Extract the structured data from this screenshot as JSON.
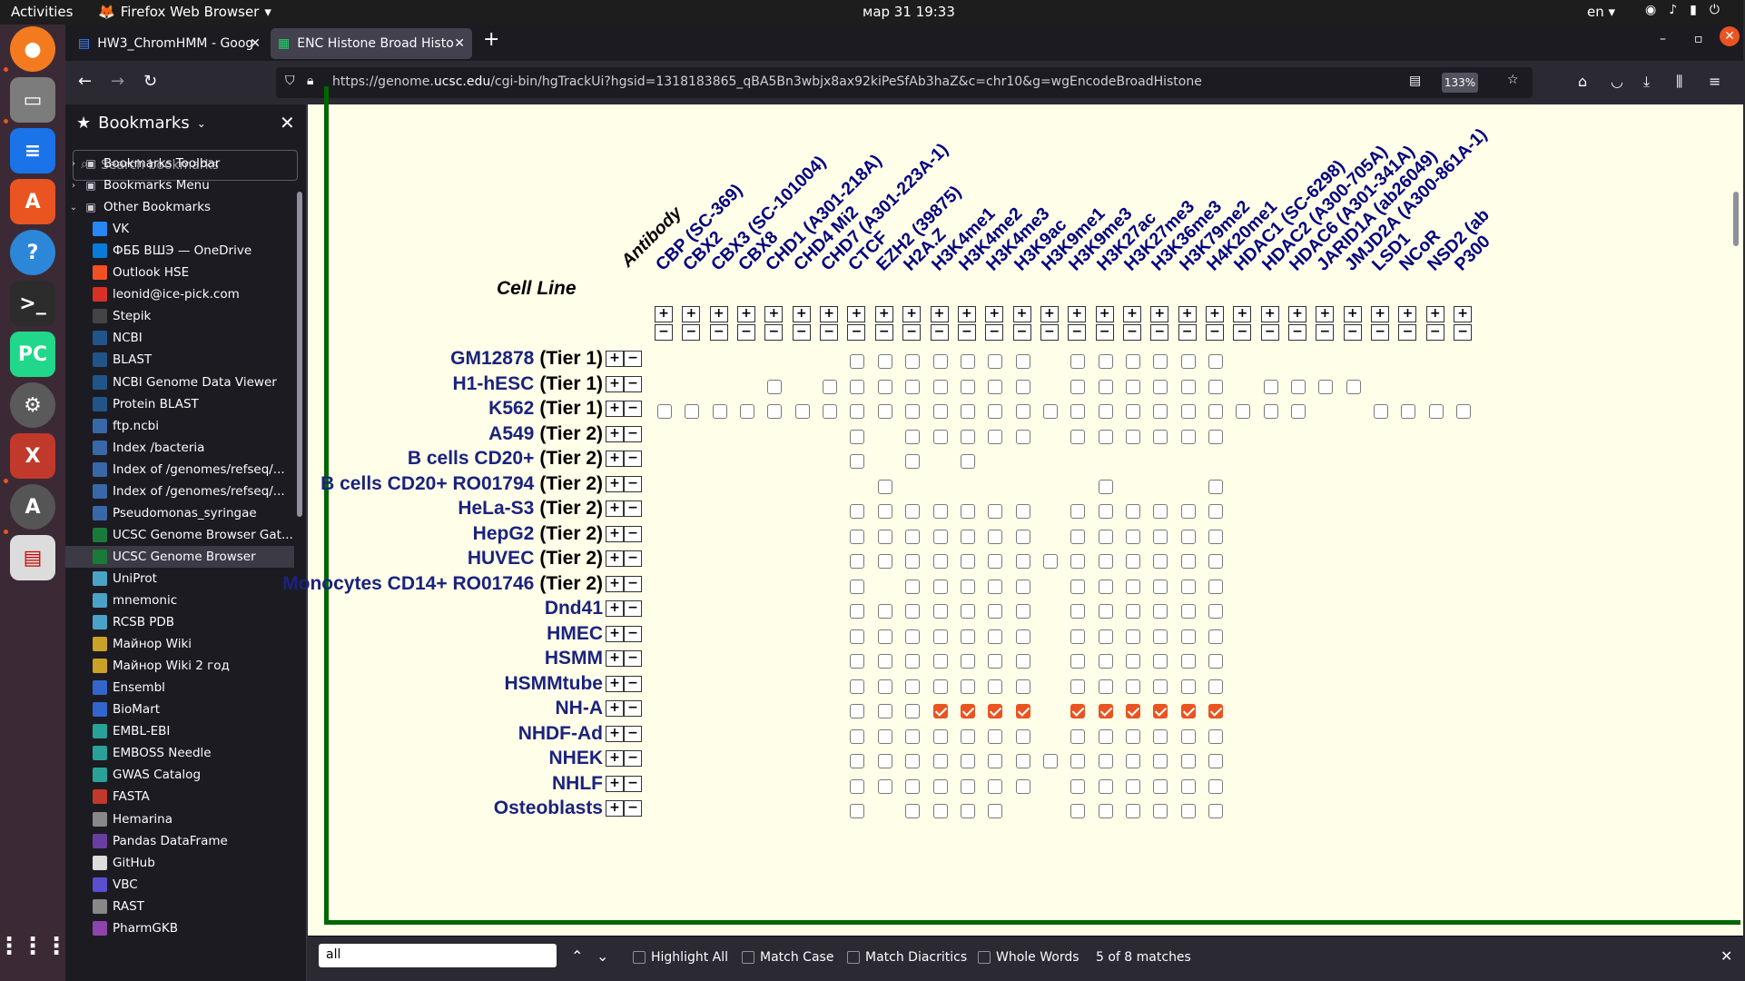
{
  "system": {
    "activities": "Activities",
    "app_name": "Firefox Web Browser",
    "clock": "мар 31  19:33",
    "lang": "en"
  },
  "tabs": [
    {
      "label": "HW3_ChromHMM - Goog",
      "active": false
    },
    {
      "label": "ENC Histone Broad Histo",
      "active": true
    }
  ],
  "url": {
    "prefix": "https://genome.",
    "domain": "ucsc.edu",
    "rest": "/cgi-bin/hgTrackUi?hgsid=1318183865_qBA5Bn3wbjx8ax92kiPeSfAb3haZ&c=chr10&g=wgEncodeBroadHistone",
    "zoom": "133%"
  },
  "sidebar": {
    "title": "Bookmarks",
    "search_placeholder": "Search bookmarks",
    "items": [
      {
        "label": "Bookmarks Toolbar",
        "icon": "toolbar-icon",
        "folder": true
      },
      {
        "label": "Bookmarks Menu",
        "icon": "menu-icon",
        "folder": true
      },
      {
        "label": "Other Bookmarks",
        "icon": "folder-icon",
        "folder": true,
        "open": true
      },
      {
        "label": "VK",
        "icon": "vk-icon",
        "color": "#2787f5"
      },
      {
        "label": "ФББ ВШЭ — OneDrive",
        "icon": "onedrive-icon",
        "color": "#0a7ad8"
      },
      {
        "label": "Outlook HSE",
        "icon": "microsoft-icon",
        "color": "#f25022"
      },
      {
        "label": "leonid@ice-pick.com",
        "icon": "gmail-icon",
        "color": "#d93025"
      },
      {
        "label": "Stepik",
        "icon": "stepik-icon",
        "color": "#444"
      },
      {
        "label": "NCBI",
        "icon": "ncbi-icon",
        "color": "#20558a"
      },
      {
        "label": "BLAST",
        "icon": "blast-icon",
        "color": "#20558a"
      },
      {
        "label": "NCBI Genome Data Viewer",
        "icon": "ncbi-icon",
        "color": "#20558a"
      },
      {
        "label": "Protein BLAST",
        "icon": "blast-icon",
        "color": "#20558a"
      },
      {
        "label": "ftp.ncbi",
        "icon": "page-icon",
        "color": "#3868a8"
      },
      {
        "label": "Index /bacteria",
        "icon": "page-icon",
        "color": "#3868a8"
      },
      {
        "label": "Index of /genomes/refseq/...",
        "icon": "page-icon",
        "color": "#3868a8"
      },
      {
        "label": "Index of /genomes/refseq/...",
        "icon": "page-icon",
        "color": "#3868a8"
      },
      {
        "label": "Pseudomonas_syringae",
        "icon": "page-icon",
        "color": "#3868a8"
      },
      {
        "label": "UCSC Genome Browser Gat...",
        "icon": "ucsc-icon",
        "color": "#1a7a3a"
      },
      {
        "label": "UCSC Genome Browser",
        "icon": "ucsc-icon",
        "color": "#1a7a3a",
        "selected": true
      },
      {
        "label": "UniProt",
        "icon": "uniprot-icon",
        "color": "#4aa3c6"
      },
      {
        "label": "mnemonic",
        "icon": "mnemonic-icon",
        "color": "#4aa3c6"
      },
      {
        "label": "RCSB PDB",
        "icon": "pdb-icon",
        "color": "#4aa3c6"
      },
      {
        "label": "Майнор Wiki",
        "icon": "wiki-icon",
        "color": "#c9a227"
      },
      {
        "label": "Майнор Wiki 2 год",
        "icon": "wiki-icon",
        "color": "#c9a227"
      },
      {
        "label": "Ensembl",
        "icon": "ensembl-icon",
        "color": "#3366cc"
      },
      {
        "label": "BioMart",
        "icon": "biomart-icon",
        "color": "#3366cc"
      },
      {
        "label": "EMBL-EBI",
        "icon": "ebi-icon",
        "color": "#2aa198"
      },
      {
        "label": "EMBOSS Needle",
        "icon": "ebi-icon",
        "color": "#2aa198"
      },
      {
        "label": "GWAS Catalog",
        "icon": "ebi-icon",
        "color": "#2aa198"
      },
      {
        "label": "FASTA",
        "icon": "fasta-icon",
        "color": "#c0392b"
      },
      {
        "label": "Hemarina",
        "icon": "globe-icon",
        "color": "#888"
      },
      {
        "label": "Pandas DataFrame",
        "icon": "pandas-icon",
        "color": "#6a3ea1"
      },
      {
        "label": "GitHub",
        "icon": "github-icon",
        "color": "#ddd"
      },
      {
        "label": "VBC",
        "icon": "vbc-icon",
        "color": "#5a4fcf"
      },
      {
        "label": "RAST",
        "icon": "globe-icon",
        "color": "#888"
      },
      {
        "label": "PharmGKB",
        "icon": "pharmgkb-icon",
        "color": "#8e44ad"
      }
    ]
  },
  "matrix": {
    "corner_label": "Antibody",
    "row_header": "Cell Line",
    "columns": [
      "CBP (SC-369)",
      "CBX2",
      "CBX3 (SC-101004)",
      "CBX8",
      "CHD1 (A301-218A)",
      "CHD4 Mi2",
      "CHD7 (A301-223A-1)",
      "CTCF",
      "EZH2 (39875)",
      "H2A.Z",
      "H3K4me1",
      "H3K4me2",
      "H3K4me3",
      "H3K9ac",
      "H3K9me1",
      "H3K9me3",
      "H3K27ac",
      "H3K27me3",
      "H3K36me3",
      "H3K79me2",
      "H4K20me1",
      "HDAC1 (SC-6298)",
      "HDAC2 (A300-705A)",
      "HDAC6 (A301-341A)",
      "JARID1A (ab26049)",
      "JMJD2A (A300-861A-1)",
      "LSD1",
      "NCoR",
      "NSD2 (ab",
      "P300"
    ],
    "plus": "+",
    "minus": "−",
    "rows": [
      {
        "name": "GM12878",
        "tier": "(Tier 1)",
        "cells": [
          7,
          8,
          9,
          10,
          11,
          12,
          13,
          15,
          16,
          17,
          18,
          19,
          20
        ],
        "checked": []
      },
      {
        "name": "H1-hESC",
        "tier": "(Tier 1)",
        "cells": [
          4,
          6,
          7,
          8,
          9,
          10,
          11,
          12,
          13,
          15,
          16,
          17,
          18,
          19,
          20,
          22,
          23,
          24,
          25
        ],
        "checked": []
      },
      {
        "name": "K562",
        "tier": "(Tier 1)",
        "cells": [
          0,
          1,
          2,
          3,
          4,
          5,
          6,
          7,
          8,
          9,
          10,
          11,
          12,
          13,
          14,
          15,
          16,
          17,
          18,
          19,
          20,
          21,
          22,
          23,
          26,
          27,
          28,
          29
        ],
        "checked": []
      },
      {
        "name": "A549",
        "tier": "(Tier 2)",
        "cells": [
          7,
          9,
          10,
          11,
          12,
          13,
          15,
          16,
          17,
          18,
          19,
          20
        ],
        "checked": []
      },
      {
        "name": "B cells CD20+",
        "tier": "(Tier 2)",
        "cells": [
          7,
          9,
          11
        ],
        "checked": []
      },
      {
        "name": "B cells CD20+ RO01794",
        "tier": "(Tier 2)",
        "cells": [
          8,
          16,
          20
        ],
        "checked": []
      },
      {
        "name": "HeLa-S3",
        "tier": "(Tier 2)",
        "cells": [
          7,
          8,
          9,
          10,
          11,
          12,
          13,
          15,
          16,
          17,
          18,
          19,
          20
        ],
        "checked": []
      },
      {
        "name": "HepG2",
        "tier": "(Tier 2)",
        "cells": [
          7,
          8,
          9,
          10,
          11,
          12,
          13,
          15,
          16,
          17,
          18,
          19,
          20
        ],
        "checked": []
      },
      {
        "name": "HUVEC",
        "tier": "(Tier 2)",
        "cells": [
          7,
          8,
          9,
          10,
          11,
          12,
          13,
          14,
          15,
          16,
          17,
          18,
          19,
          20
        ],
        "checked": []
      },
      {
        "name": "Monocytes CD14+ RO01746",
        "tier": "(Tier 2)",
        "cells": [
          7,
          9,
          10,
          11,
          12,
          13,
          15,
          16,
          17,
          18,
          19,
          20
        ],
        "checked": []
      },
      {
        "name": "Dnd41",
        "tier": "",
        "cells": [
          7,
          8,
          9,
          10,
          11,
          12,
          13,
          15,
          16,
          17,
          18,
          19,
          20
        ],
        "checked": []
      },
      {
        "name": "HMEC",
        "tier": "",
        "cells": [
          7,
          8,
          9,
          10,
          11,
          12,
          13,
          15,
          16,
          17,
          18,
          19,
          20
        ],
        "checked": []
      },
      {
        "name": "HSMM",
        "tier": "",
        "cells": [
          7,
          8,
          9,
          10,
          11,
          12,
          13,
          15,
          16,
          17,
          18,
          19,
          20
        ],
        "checked": []
      },
      {
        "name": "HSMMtube",
        "tier": "",
        "cells": [
          7,
          8,
          9,
          10,
          11,
          12,
          13,
          15,
          16,
          17,
          18,
          19,
          20
        ],
        "checked": []
      },
      {
        "name": "NH-A",
        "tier": "",
        "cells": [
          7,
          8,
          9,
          10,
          11,
          12,
          13,
          15,
          16,
          17,
          18,
          19,
          20
        ],
        "checked": [
          10,
          11,
          12,
          13,
          15,
          16,
          17,
          18,
          19,
          20
        ]
      },
      {
        "name": "NHDF-Ad",
        "tier": "",
        "cells": [
          7,
          8,
          9,
          10,
          11,
          12,
          13,
          15,
          16,
          17,
          18,
          19,
          20
        ],
        "checked": []
      },
      {
        "name": "NHEK",
        "tier": "",
        "cells": [
          7,
          8,
          9,
          10,
          11,
          12,
          13,
          14,
          15,
          16,
          17,
          18,
          19,
          20
        ],
        "checked": []
      },
      {
        "name": "NHLF",
        "tier": "",
        "cells": [
          7,
          8,
          9,
          10,
          11,
          12,
          13,
          15,
          16,
          17,
          18,
          19,
          20
        ],
        "checked": []
      },
      {
        "name": "Osteoblasts",
        "tier": "",
        "cells": [
          7,
          9,
          10,
          11,
          12,
          15,
          16,
          17,
          18,
          19,
          20
        ],
        "checked": []
      }
    ]
  },
  "find": {
    "query": "all",
    "options": [
      "Highlight All",
      "Match Case",
      "Match Diacritics",
      "Whole Words"
    ],
    "status": "5 of 8 matches"
  }
}
